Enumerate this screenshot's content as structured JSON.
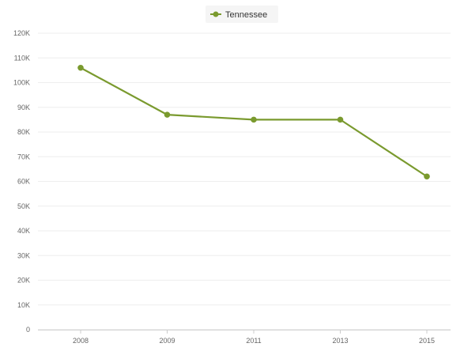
{
  "chart_data": {
    "type": "line",
    "categories": [
      "2008",
      "2009",
      "2011",
      "2013",
      "2015"
    ],
    "series": [
      {
        "name": "Tennessee",
        "color": "#7a9a2e",
        "values": [
          106000,
          87000,
          85000,
          85000,
          62000
        ]
      }
    ],
    "ylim": [
      0,
      120000
    ],
    "yticks": [
      0,
      10000,
      20000,
      30000,
      40000,
      50000,
      60000,
      70000,
      80000,
      90000,
      100000,
      110000,
      120000
    ],
    "ytick_labels": [
      "0",
      "10K",
      "20K",
      "30K",
      "40K",
      "50K",
      "60K",
      "70K",
      "80K",
      "90K",
      "100K",
      "110K",
      "120K"
    ],
    "grid": true,
    "legend": {
      "position": "top-center"
    }
  }
}
